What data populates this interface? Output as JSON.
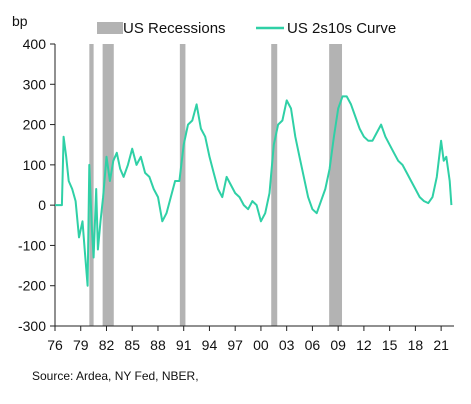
{
  "chart_data": {
    "type": "line",
    "title": "",
    "ylabel": "bp",
    "xlabel": "",
    "ylim": [
      -300,
      400
    ],
    "xlim": [
      1976,
      2022.5
    ],
    "yticks": [
      -300,
      -200,
      -100,
      0,
      100,
      200,
      300,
      400
    ],
    "ytick_labels": [
      "-300",
      "-200",
      "-100",
      "0",
      "100",
      "200",
      "300",
      "400"
    ],
    "xticks": [
      1976,
      1979,
      1982,
      1985,
      1988,
      1991,
      1994,
      1997,
      2000,
      2003,
      2006,
      2009,
      2012,
      2015,
      2018,
      2021
    ],
    "xtick_labels": [
      "76",
      "79",
      "82",
      "85",
      "88",
      "91",
      "94",
      "97",
      "00",
      "03",
      "06",
      "09",
      "12",
      "15",
      "18",
      "21"
    ],
    "legend": [
      "US Recessions",
      "US 2s10s Curve"
    ],
    "legend_position": "top",
    "grid": false,
    "colors": {
      "line": "#2fd0a6",
      "recession": "#b3b3b3",
      "axis": "#222222"
    },
    "recessions": [
      {
        "start": 1980.0,
        "end": 1980.5
      },
      {
        "start": 1981.55,
        "end": 1982.85
      },
      {
        "start": 1990.55,
        "end": 1991.2
      },
      {
        "start": 2001.2,
        "end": 2001.9
      },
      {
        "start": 2007.95,
        "end": 2009.45
      }
    ],
    "series": [
      {
        "name": "US 2s10s Curve",
        "x": [
          1976.0,
          1976.8,
          1977.0,
          1977.3,
          1977.6,
          1978.0,
          1978.4,
          1978.8,
          1979.2,
          1979.5,
          1979.8,
          1980.0,
          1980.3,
          1980.5,
          1980.8,
          1981.0,
          1981.3,
          1981.6,
          1982.0,
          1982.4,
          1982.8,
          1983.2,
          1983.6,
          1984.0,
          1984.5,
          1985.0,
          1985.5,
          1986.0,
          1986.5,
          1987.0,
          1987.5,
          1988.0,
          1988.5,
          1989.0,
          1989.5,
          1990.0,
          1990.5,
          1991.0,
          1991.5,
          1992.0,
          1992.5,
          1993.0,
          1993.5,
          1994.0,
          1994.5,
          1995.0,
          1995.5,
          1996.0,
          1996.5,
          1997.0,
          1997.5,
          1998.0,
          1998.5,
          1999.0,
          1999.5,
          2000.0,
          2000.5,
          2001.0,
          2001.5,
          2002.0,
          2002.5,
          2003.0,
          2003.5,
          2004.0,
          2004.5,
          2005.0,
          2005.5,
          2006.0,
          2006.5,
          2007.0,
          2007.5,
          2008.0,
          2008.5,
          2009.0,
          2009.5,
          2010.0,
          2010.5,
          2011.0,
          2011.5,
          2012.0,
          2012.5,
          2013.0,
          2013.5,
          2014.0,
          2014.5,
          2015.0,
          2015.5,
          2016.0,
          2016.5,
          2017.0,
          2017.5,
          2018.0,
          2018.5,
          2019.0,
          2019.5,
          2020.0,
          2020.5,
          2021.0,
          2021.3,
          2021.6,
          2022.0,
          2022.2
        ],
        "values": [
          0,
          0,
          170,
          120,
          60,
          40,
          10,
          -80,
          -40,
          -120,
          -200,
          100,
          -60,
          -130,
          40,
          -110,
          -40,
          20,
          120,
          60,
          110,
          130,
          90,
          70,
          100,
          140,
          100,
          120,
          80,
          70,
          40,
          20,
          -40,
          -20,
          20,
          60,
          60,
          150,
          200,
          210,
          250,
          190,
          170,
          120,
          80,
          40,
          20,
          70,
          50,
          30,
          20,
          0,
          -10,
          10,
          0,
          -40,
          -20,
          30,
          150,
          200,
          210,
          260,
          240,
          170,
          120,
          70,
          20,
          -10,
          -20,
          10,
          40,
          90,
          170,
          240,
          270,
          270,
          250,
          220,
          190,
          170,
          160,
          160,
          180,
          200,
          170,
          150,
          130,
          110,
          100,
          80,
          60,
          40,
          20,
          10,
          5,
          20,
          70,
          160,
          110,
          120,
          60,
          0
        ]
      }
    ],
    "source_note": "Source: Ardea, NY Fed, NBER,"
  }
}
